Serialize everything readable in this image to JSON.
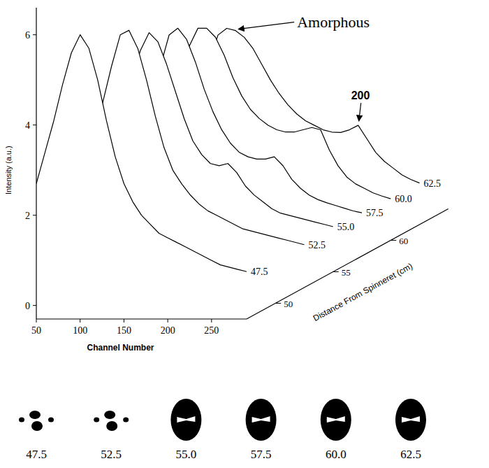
{
  "chart_data": {
    "type": "line",
    "xlabel": "Channel Number",
    "ylabel": "Intensity (a.u.)",
    "zlabel": "Distance From Spinneret (cm)",
    "xlim": [
      50,
      290
    ],
    "xticks": [
      50,
      100,
      150,
      200,
      250
    ],
    "ylim": [
      -0.3,
      6.6
    ],
    "yticks": [
      0,
      2,
      4,
      6
    ],
    "zlim": [
      47.5,
      65
    ],
    "zticks": [
      50,
      55,
      60
    ],
    "color": "#000000",
    "x": [
      50,
      60,
      70,
      80,
      90,
      100,
      110,
      120,
      130,
      140,
      150,
      160,
      170,
      180,
      190,
      200,
      210,
      220,
      230,
      240,
      250,
      260,
      270,
      280,
      290
    ],
    "series": [
      {
        "name": "47.5",
        "distance": 47.5,
        "values": [
          2.7,
          3.4,
          4.1,
          4.9,
          5.6,
          6.0,
          5.7,
          5.0,
          4.1,
          3.3,
          2.7,
          2.3,
          2.0,
          1.8,
          1.6,
          1.5,
          1.4,
          1.3,
          1.2,
          1.1,
          1.0,
          0.9,
          0.85,
          0.8,
          0.75
        ]
      },
      {
        "name": "52.5",
        "distance": 52.5,
        "values": [
          3.0,
          3.8,
          4.6,
          5.3,
          5.4,
          5.0,
          4.3,
          3.5,
          2.8,
          2.3,
          2.0,
          1.75,
          1.55,
          1.4,
          1.3,
          1.2,
          1.1,
          1.0,
          0.95,
          0.9,
          0.85,
          0.8,
          0.75,
          0.7,
          0.65
        ]
      },
      {
        "name": "55.0",
        "distance": 55.0,
        "values": [
          3.2,
          3.9,
          4.6,
          5.0,
          4.8,
          4.3,
          3.7,
          3.1,
          2.6,
          2.3,
          2.1,
          2.05,
          2.1,
          1.9,
          1.6,
          1.4,
          1.25,
          1.1,
          1.0,
          0.95,
          0.9,
          0.85,
          0.8,
          0.75,
          0.7
        ]
      },
      {
        "name": "57.5",
        "distance": 57.5,
        "values": [
          3.2,
          3.9,
          4.6,
          4.75,
          4.5,
          4.0,
          3.4,
          2.9,
          2.5,
          2.2,
          2.0,
          1.9,
          1.85,
          1.85,
          1.9,
          1.7,
          1.4,
          1.2,
          1.05,
          0.95,
          0.88,
          0.82,
          0.76,
          0.7,
          0.66
        ]
      },
      {
        "name": "60.0",
        "distance": 60.0,
        "values": [
          3.4,
          4.0,
          4.4,
          4.4,
          4.2,
          3.8,
          3.3,
          2.9,
          2.6,
          2.4,
          2.25,
          2.15,
          2.1,
          2.1,
          2.15,
          2.2,
          2.15,
          1.7,
          1.35,
          1.1,
          0.95,
          0.85,
          0.75,
          0.68,
          0.62
        ]
      },
      {
        "name": "62.5",
        "distance": 62.5,
        "values": [
          3.3,
          3.9,
          4.05,
          4.0,
          3.85,
          3.6,
          3.25,
          2.9,
          2.6,
          2.35,
          2.15,
          2.0,
          1.9,
          1.8,
          1.75,
          1.74,
          1.8,
          1.9,
          1.6,
          1.3,
          1.1,
          0.95,
          0.8,
          0.7,
          0.62
        ]
      }
    ],
    "annotations": [
      {
        "text": "Amorphous",
        "series": "62.5",
        "x": 80
      },
      {
        "text": "200",
        "series": "62.5",
        "x": 220
      }
    ]
  },
  "patterns": [
    {
      "label": "47.5",
      "kind": "spots"
    },
    {
      "label": "52.5",
      "kind": "spots"
    },
    {
      "label": "55.0",
      "kind": "halo"
    },
    {
      "label": "57.5",
      "kind": "halo"
    },
    {
      "label": "60.0",
      "kind": "halo"
    },
    {
      "label": "62.5",
      "kind": "halo"
    }
  ]
}
